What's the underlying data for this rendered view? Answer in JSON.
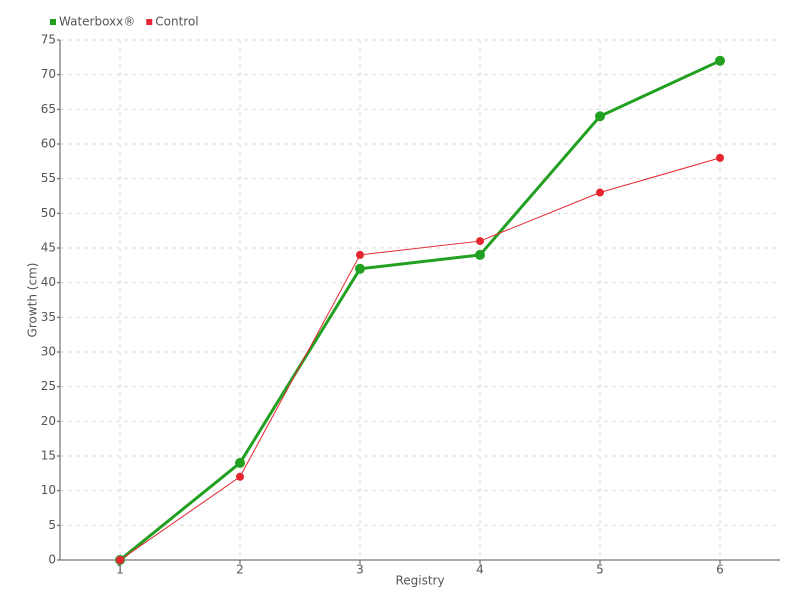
{
  "chart_data": {
    "type": "line",
    "x_label": "Registry",
    "y_label": "Growth (cm)",
    "categories": [
      "1",
      "2",
      "3",
      "4",
      "5",
      "6"
    ],
    "series": [
      {
        "name": "Waterboxx®",
        "color": "#22a022",
        "values": [
          0,
          14,
          42,
          44,
          64,
          72
        ]
      },
      {
        "name": "Control",
        "color": "#e52630",
        "values": [
          0,
          12,
          44,
          46,
          53,
          58
        ]
      }
    ],
    "ylim": [
      0,
      75
    ],
    "yticks": [
      0,
      5,
      10,
      15,
      20,
      25,
      30,
      35,
      40,
      45,
      50,
      55,
      60,
      65,
      70,
      75
    ],
    "grid": true,
    "legend": "top-left"
  }
}
